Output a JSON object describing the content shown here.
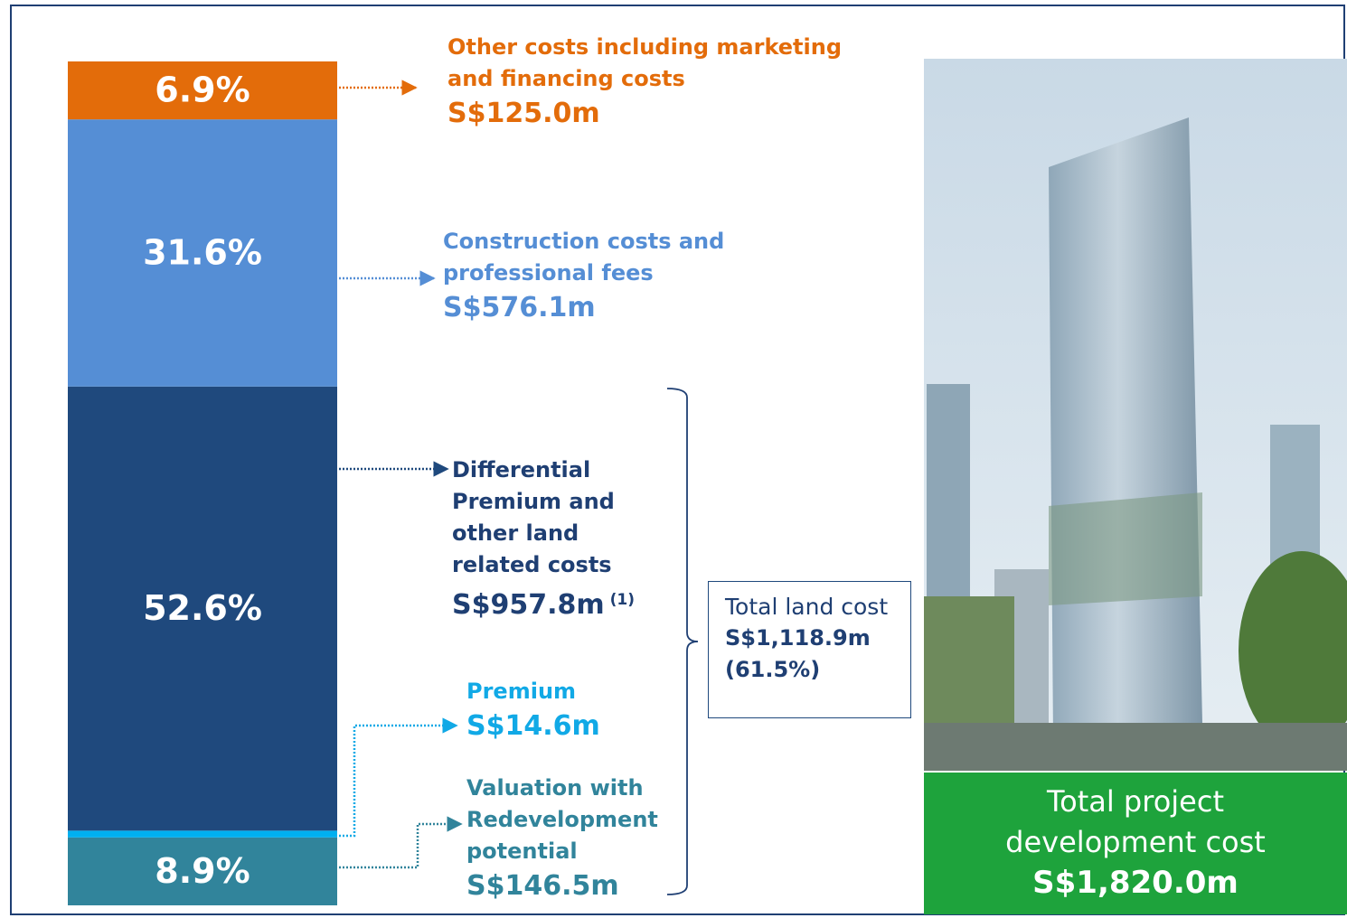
{
  "chart_data": {
    "type": "stacked_bar",
    "series": [
      {
        "name": "Valuation with Redevelopment potential",
        "color": "#31849b",
        "values": [
          146.5
        ],
        "value_labels": [
          "S$146.5m"
        ],
        "shares": [
          8.9
        ],
        "share_labels": [
          "8.9%"
        ]
      },
      {
        "name": "Premium",
        "color": "#00b0f0",
        "values": [
          14.6
        ],
        "value_labels": [
          "S$14.6m"
        ]
      },
      {
        "name": "Differential Premium and other land related costs",
        "color": "#1f497d",
        "values": [
          957.8
        ],
        "value_labels": [
          "S$957.8m"
        ],
        "footnote": "(1)",
        "shares": [
          52.6
        ],
        "share_labels": [
          "52.6%"
        ]
      },
      {
        "name": "Construction costs and professional fees",
        "color": "#558ed5",
        "values": [
          576.1
        ],
        "value_labels": [
          "S$576.1m"
        ],
        "shares": [
          31.6
        ],
        "share_labels": [
          "31.6%"
        ]
      },
      {
        "name": "Other costs including marketing and financing costs",
        "color": "#e36c0a",
        "values": [
          125.0
        ],
        "value_labels": [
          "S$125.0m"
        ],
        "shares": [
          6.9
        ],
        "share_labels": [
          "6.9%"
        ]
      }
    ],
    "total_land": {
      "label": "Total land cost",
      "value": 1118.9,
      "value_label": "S$1,118.9m",
      "share": 61.5,
      "share_label": "(61.5%)"
    },
    "total": {
      "label": "Total project development cost",
      "value": 1820.0,
      "value_label": "S$1,820.0m"
    }
  }
}
